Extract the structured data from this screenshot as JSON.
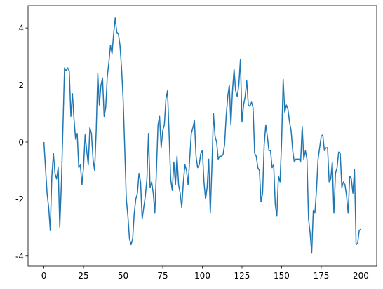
{
  "chart_data": {
    "type": "line",
    "x": [
      0,
      1,
      2,
      3,
      4,
      5,
      6,
      7,
      8,
      9,
      10,
      11,
      12,
      13,
      14,
      15,
      16,
      17,
      18,
      19,
      20,
      21,
      22,
      23,
      24,
      25,
      26,
      27,
      28,
      29,
      30,
      31,
      32,
      33,
      34,
      35,
      36,
      37,
      38,
      39,
      40,
      41,
      42,
      43,
      44,
      45,
      46,
      47,
      48,
      49,
      50,
      51,
      52,
      53,
      54,
      55,
      56,
      57,
      58,
      59,
      60,
      61,
      62,
      63,
      64,
      65,
      66,
      67,
      68,
      69,
      70,
      71,
      72,
      73,
      74,
      75,
      76,
      77,
      78,
      79,
      80,
      81,
      82,
      83,
      84,
      85,
      86,
      87,
      88,
      89,
      90,
      91,
      92,
      93,
      94,
      95,
      96,
      97,
      98,
      99,
      100,
      101,
      102,
      103,
      104,
      105,
      106,
      107,
      108,
      109,
      110,
      111,
      112,
      113,
      114,
      115,
      116,
      117,
      118,
      119,
      120,
      121,
      122,
      123,
      124,
      125,
      126,
      127,
      128,
      129,
      130,
      131,
      132,
      133,
      134,
      135,
      136,
      137,
      138,
      139,
      140,
      141,
      142,
      143,
      144,
      145,
      146,
      147,
      148,
      149,
      150,
      151,
      152,
      153,
      154,
      155,
      156,
      157,
      158,
      159,
      160,
      161,
      162,
      163,
      164,
      165,
      166,
      167,
      168,
      169,
      170,
      171,
      172,
      173,
      174,
      175,
      176,
      177,
      178,
      179,
      180,
      181,
      182,
      183,
      184,
      185,
      186,
      187,
      188,
      189,
      190,
      191,
      192,
      193,
      194,
      195,
      196,
      197,
      198,
      199,
      200
    ],
    "series": [
      {
        "color": "#1f77b4",
        "values": [
          0,
          -0.9,
          -1.8,
          -2.3,
          -3.1,
          -1.2,
          -0.4,
          -1.1,
          -1.3,
          -0.9,
          -3.0,
          -1.5,
          0.5,
          2.6,
          2.5,
          2.6,
          2.5,
          0.9,
          1.7,
          0.8,
          0.1,
          0.3,
          -0.9,
          -0.8,
          -1.5,
          -0.9,
          0.25,
          -0.3,
          -0.8,
          0.5,
          0.3,
          -0.6,
          -1.0,
          0.4,
          2.4,
          1.3,
          2.0,
          2.25,
          0.9,
          1.2,
          2.3,
          2.8,
          3.4,
          3.1,
          3.8,
          4.35,
          3.85,
          3.8,
          3.4,
          2.6,
          1.5,
          -0.2,
          -2.0,
          -2.6,
          -3.4,
          -3.6,
          -3.4,
          -2.5,
          -2.0,
          -1.8,
          -1.1,
          -1.4,
          -2.7,
          -2.3,
          -1.9,
          -1.3,
          0.3,
          -1.6,
          -1.4,
          -1.8,
          -2.5,
          -1.0,
          0.6,
          0.9,
          -0.2,
          0.4,
          0.6,
          1.5,
          1.8,
          0.3,
          -1.3,
          -1.7,
          -0.7,
          -1.5,
          -0.5,
          -1.5,
          -1.8,
          -2.3,
          -1.4,
          -0.8,
          -1.0,
          -1.5,
          -0.6,
          0.3,
          0.5,
          0.75,
          -0.5,
          -0.9,
          -0.8,
          -0.4,
          -0.3,
          -1.4,
          -2.0,
          -1.6,
          -0.6,
          -2.5,
          -0.9,
          1.0,
          0.2,
          0.0,
          -0.6,
          -0.5,
          -0.5,
          -0.45,
          -0.1,
          0.9,
          1.6,
          2.0,
          0.6,
          1.8,
          2.55,
          1.8,
          1.6,
          2.0,
          2.9,
          0.7,
          1.3,
          1.6,
          2.15,
          1.3,
          1.25,
          1.4,
          1.2,
          -0.4,
          -0.5,
          -0.9,
          -1.0,
          -2.1,
          -1.8,
          -0.1,
          0.6,
          0.2,
          -0.3,
          -0.3,
          -0.9,
          -0.8,
          -2.2,
          -2.6,
          -1.2,
          -1.4,
          0.0,
          2.2,
          1.05,
          1.3,
          1.15,
          0.7,
          0.4,
          -0.3,
          -0.7,
          -0.6,
          -0.6,
          -0.6,
          -0.7,
          0.55,
          -0.6,
          -0.3,
          -0.6,
          -2.7,
          -3.2,
          -3.9,
          -2.4,
          -2.5,
          -1.7,
          -0.6,
          -0.2,
          0.2,
          0.25,
          -0.3,
          -0.2,
          -0.2,
          -1.4,
          -1.3,
          -0.7,
          -2.5,
          -1.1,
          -0.9,
          -0.35,
          -0.4,
          -1.6,
          -1.4,
          -1.5,
          -1.9,
          -2.5,
          -1.2,
          -1.3,
          -1.8,
          -0.95,
          -3.6,
          -3.55,
          -3.1,
          -3.05
        ]
      }
    ],
    "xlim": [
      -10,
      210
    ],
    "ylim": [
      -4.35,
      4.79
    ],
    "xticks": [
      0,
      25,
      50,
      75,
      100,
      125,
      150,
      175,
      200
    ],
    "yticks": [
      -4,
      -2,
      0,
      2,
      4
    ],
    "grid": false
  }
}
